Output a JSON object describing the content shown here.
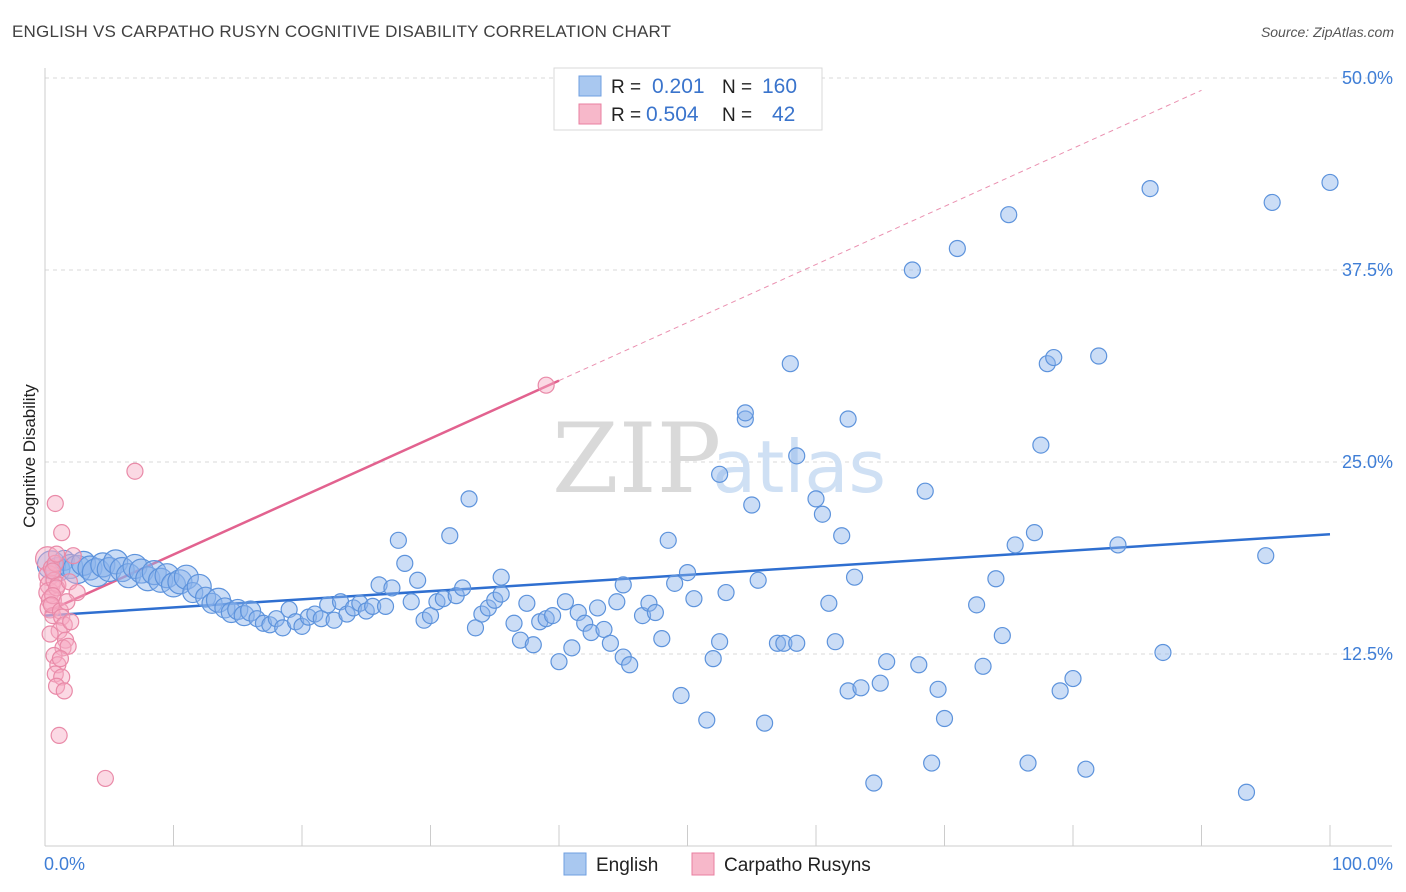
{
  "header": {
    "title": "ENGLISH VS CARPATHO RUSYN COGNITIVE DISABILITY CORRELATION CHART",
    "source": "Source: ZipAtlas.com"
  },
  "watermark": {
    "zip": "ZIP",
    "atlas": "atlas"
  },
  "legend_top": {
    "rows": [
      {
        "r_label": "R =",
        "r_value": "0.201",
        "n_label": "N =",
        "n_value": "160",
        "color": "#a9c8f0",
        "stroke": "#6f9fe0"
      },
      {
        "r_label": "R =",
        "r_value": "0.504",
        "n_label": "N =",
        "n_value": "42",
        "color": "#f7b8ca",
        "stroke": "#e87fa0"
      }
    ]
  },
  "legend_bottom": {
    "items": [
      {
        "label": "English",
        "color": "#a9c8f0",
        "stroke": "#6f9fe0"
      },
      {
        "label": "Carpatho Rusyns",
        "color": "#f7b8ca",
        "stroke": "#e87fa0"
      }
    ]
  },
  "colors": {
    "blue_fill": "rgba(140,180,235,0.45)",
    "blue_stroke": "#5d93dc",
    "blue_line": "#2f6fd0",
    "pink_fill": "rgba(247,170,195,0.45)",
    "pink_stroke": "#e98aa8",
    "pink_line": "#e2628f",
    "grid": "#d8d8d8"
  },
  "chart_data": {
    "type": "scatter",
    "title": "ENGLISH VS CARPATHO RUSYN COGNITIVE DISABILITY CORRELATION CHART",
    "xlabel": "",
    "ylabel": "Cognitive Disability",
    "xlim": [
      0,
      100
    ],
    "ylim": [
      0,
      50
    ],
    "x_tick_labels": [
      "0.0%",
      "100.0%"
    ],
    "y_ticks": [
      12.5,
      25.0,
      37.5,
      50.0
    ],
    "y_tick_labels": [
      "12.5%",
      "25.0%",
      "37.5%",
      "50.0%"
    ],
    "grid": true,
    "legend_position": "top-center",
    "series": [
      {
        "name": "English",
        "r": 0.201,
        "n": 160,
        "trend": {
          "x": [
            0,
            100
          ],
          "y": [
            15.0,
            20.3
          ]
        },
        "points": [
          [
            0.5,
            18.3,
            14
          ],
          [
            1.0,
            18.0,
            12
          ],
          [
            1.5,
            18.6,
            10
          ],
          [
            2.0,
            18.2,
            12
          ],
          [
            2.5,
            18.0,
            14
          ],
          [
            3.0,
            18.4,
            12
          ],
          [
            3.5,
            18.1,
            12
          ],
          [
            4.0,
            17.8,
            14
          ],
          [
            4.5,
            18.3,
            12
          ],
          [
            5.0,
            18.0,
            12
          ],
          [
            5.5,
            18.5,
            12
          ],
          [
            6.0,
            18.0,
            12
          ],
          [
            6.5,
            17.6,
            12
          ],
          [
            7.0,
            18.2,
            12
          ],
          [
            7.5,
            17.9,
            12
          ],
          [
            8.0,
            17.4,
            12
          ],
          [
            8.5,
            17.8,
            12
          ],
          [
            9.0,
            17.3,
            12
          ],
          [
            9.5,
            17.6,
            12
          ],
          [
            10.0,
            17.0,
            12
          ],
          [
            10.5,
            17.2,
            12
          ],
          [
            11.0,
            17.5,
            12
          ],
          [
            11.5,
            16.5,
            10
          ],
          [
            12.0,
            16.9,
            12
          ],
          [
            12.5,
            16.2,
            10
          ],
          [
            13.0,
            15.8,
            10
          ],
          [
            13.5,
            16.0,
            12
          ],
          [
            14.0,
            15.5,
            10
          ],
          [
            14.5,
            15.2,
            10
          ],
          [
            15.0,
            15.4,
            10
          ],
          [
            15.5,
            15.0,
            10
          ],
          [
            16.0,
            15.3,
            10
          ],
          [
            16.5,
            14.8,
            8
          ],
          [
            17.0,
            14.5,
            8
          ],
          [
            17.5,
            14.4,
            8
          ],
          [
            18.0,
            14.8,
            8
          ],
          [
            18.5,
            14.2,
            8
          ],
          [
            19.0,
            15.4,
            8
          ],
          [
            19.5,
            14.6,
            8
          ],
          [
            20.0,
            14.3,
            8
          ],
          [
            20.5,
            14.9,
            8
          ],
          [
            21.0,
            15.1,
            8
          ],
          [
            21.5,
            14.8,
            8
          ],
          [
            22.0,
            15.7,
            8
          ],
          [
            22.5,
            14.7,
            8
          ],
          [
            23.0,
            15.9,
            8
          ],
          [
            23.5,
            15.1,
            8
          ],
          [
            24.0,
            15.5,
            8
          ],
          [
            24.5,
            15.8,
            8
          ],
          [
            25.0,
            15.3,
            8
          ],
          [
            25.5,
            15.6,
            8
          ],
          [
            26.0,
            17.0,
            8
          ],
          [
            26.5,
            15.6,
            8
          ],
          [
            27.0,
            16.8,
            8
          ],
          [
            28.0,
            18.4,
            8
          ],
          [
            27.5,
            19.9,
            8
          ],
          [
            28.5,
            15.9,
            8
          ],
          [
            29.0,
            17.3,
            8
          ],
          [
            29.5,
            14.7,
            8
          ],
          [
            30.0,
            15.0,
            8
          ],
          [
            30.5,
            15.9,
            8
          ],
          [
            31.0,
            16.1,
            8
          ],
          [
            31.5,
            20.2,
            8
          ],
          [
            32.0,
            16.3,
            8
          ],
          [
            32.5,
            16.8,
            8
          ],
          [
            33.0,
            22.6,
            8
          ],
          [
            33.5,
            14.2,
            8
          ],
          [
            34.0,
            15.1,
            8
          ],
          [
            34.5,
            15.5,
            8
          ],
          [
            35.0,
            16.0,
            8
          ],
          [
            35.5,
            16.4,
            8
          ],
          [
            35.5,
            17.5,
            8
          ],
          [
            36.5,
            14.5,
            8
          ],
          [
            37.0,
            13.4,
            8
          ],
          [
            37.5,
            15.8,
            8
          ],
          [
            38.0,
            13.1,
            8
          ],
          [
            38.5,
            14.6,
            8
          ],
          [
            39.0,
            14.8,
            8
          ],
          [
            40.0,
            12.0,
            8
          ],
          [
            39.5,
            15.0,
            8
          ],
          [
            40.5,
            15.9,
            8
          ],
          [
            41.0,
            12.9,
            8
          ],
          [
            41.5,
            15.2,
            8
          ],
          [
            42.0,
            14.5,
            8
          ],
          [
            42.5,
            13.9,
            8
          ],
          [
            43.0,
            15.5,
            8
          ],
          [
            43.5,
            14.1,
            8
          ],
          [
            44.0,
            13.2,
            8
          ],
          [
            44.5,
            15.9,
            8
          ],
          [
            45.0,
            12.3,
            8
          ],
          [
            45.5,
            11.8,
            8
          ],
          [
            45.0,
            17.0,
            8
          ],
          [
            46.5,
            15.0,
            8
          ],
          [
            47.0,
            15.8,
            8
          ],
          [
            47.5,
            15.2,
            8
          ],
          [
            48.0,
            13.5,
            8
          ],
          [
            48.5,
            19.9,
            8
          ],
          [
            49.0,
            17.1,
            8
          ],
          [
            50.0,
            17.8,
            8
          ],
          [
            50.5,
            16.1,
            8
          ],
          [
            49.5,
            9.8,
            8
          ],
          [
            51.5,
            8.2,
            8
          ],
          [
            52.5,
            13.3,
            8
          ],
          [
            52.0,
            12.2,
            8
          ],
          [
            53.0,
            16.5,
            8
          ],
          [
            52.5,
            24.2,
            8
          ],
          [
            54.5,
            27.8,
            8
          ],
          [
            55.0,
            22.2,
            8
          ],
          [
            55.5,
            17.3,
            8
          ],
          [
            54.5,
            28.2,
            8
          ],
          [
            56.0,
            8.0,
            8
          ],
          [
            57.0,
            13.2,
            8
          ],
          [
            57.5,
            13.2,
            8
          ],
          [
            58.5,
            13.2,
            8
          ],
          [
            58.0,
            31.4,
            8
          ],
          [
            58.5,
            25.4,
            8
          ],
          [
            60.0,
            22.6,
            8
          ],
          [
            60.5,
            21.6,
            8
          ],
          [
            61.0,
            15.8,
            8
          ],
          [
            61.5,
            13.3,
            8
          ],
          [
            62.0,
            20.2,
            8
          ],
          [
            62.5,
            27.8,
            8
          ],
          [
            63.0,
            17.5,
            8
          ],
          [
            62.5,
            10.1,
            8
          ],
          [
            63.5,
            10.3,
            8
          ],
          [
            64.5,
            4.1,
            8
          ],
          [
            65.0,
            10.6,
            8
          ],
          [
            65.5,
            12.0,
            8
          ],
          [
            67.5,
            37.5,
            8
          ],
          [
            68.0,
            11.8,
            8
          ],
          [
            68.5,
            23.1,
            8
          ],
          [
            69.5,
            10.2,
            8
          ],
          [
            70.0,
            8.3,
            8
          ],
          [
            69.0,
            5.4,
            8
          ],
          [
            71.0,
            38.9,
            8
          ],
          [
            72.5,
            15.7,
            8
          ],
          [
            73.0,
            11.7,
            8
          ],
          [
            74.0,
            17.4,
            8
          ],
          [
            74.5,
            13.7,
            8
          ],
          [
            75.0,
            41.1,
            8
          ],
          [
            75.5,
            19.6,
            8
          ],
          [
            76.5,
            5.4,
            8
          ],
          [
            77.0,
            20.4,
            8
          ],
          [
            77.5,
            26.1,
            8
          ],
          [
            78.0,
            31.4,
            8
          ],
          [
            78.5,
            31.8,
            8
          ],
          [
            79.0,
            10.1,
            8
          ],
          [
            80.0,
            10.9,
            8
          ],
          [
            81.0,
            5.0,
            8
          ],
          [
            82.0,
            31.9,
            8
          ],
          [
            83.5,
            19.6,
            8
          ],
          [
            86.0,
            42.8,
            8
          ],
          [
            87.0,
            12.6,
            8
          ],
          [
            93.5,
            3.5,
            8
          ],
          [
            95.0,
            18.9,
            8
          ],
          [
            95.5,
            41.9,
            8
          ],
          [
            100.0,
            43.2,
            8
          ]
        ]
      },
      {
        "name": "Carpatho Rusyns",
        "r": 0.504,
        "n": 42,
        "trend": {
          "x": [
            0,
            40
          ],
          "y": [
            15.2,
            30.3
          ]
        },
        "trend_extension": {
          "x": [
            40,
            90
          ],
          "y": [
            30.3,
            49.2
          ]
        },
        "points": [
          [
            0.2,
            18.7,
            12
          ],
          [
            0.3,
            17.6,
            10
          ],
          [
            0.4,
            17.0,
            10
          ],
          [
            0.3,
            16.5,
            10
          ],
          [
            0.5,
            16.0,
            10
          ],
          [
            0.4,
            15.5,
            10
          ],
          [
            0.6,
            15.0,
            8
          ],
          [
            0.5,
            18.1,
            8
          ],
          [
            0.8,
            18.4,
            8
          ],
          [
            0.7,
            17.3,
            8
          ],
          [
            1.0,
            17.0,
            8
          ],
          [
            0.9,
            16.8,
            8
          ],
          [
            0.6,
            16.3,
            8
          ],
          [
            0.5,
            15.7,
            8
          ],
          [
            1.2,
            15.3,
            8
          ],
          [
            1.3,
            14.9,
            8
          ],
          [
            1.5,
            14.4,
            8
          ],
          [
            1.1,
            14.0,
            8
          ],
          [
            1.6,
            13.4,
            8
          ],
          [
            1.4,
            12.9,
            8
          ],
          [
            1.8,
            13.0,
            8
          ],
          [
            0.7,
            12.4,
            8
          ],
          [
            1.0,
            11.8,
            8
          ],
          [
            0.8,
            11.2,
            8
          ],
          [
            1.3,
            11.0,
            8
          ],
          [
            0.9,
            10.4,
            8
          ],
          [
            1.5,
            10.1,
            8
          ],
          [
            0.8,
            22.3,
            8
          ],
          [
            1.3,
            20.4,
            8
          ],
          [
            0.9,
            19.0,
            8
          ],
          [
            1.1,
            7.2,
            8
          ],
          [
            4.7,
            4.4,
            8
          ],
          [
            7.0,
            24.4,
            8
          ],
          [
            39.0,
            30.0,
            8
          ],
          [
            2.2,
            18.9,
            8
          ],
          [
            1.9,
            17.2,
            8
          ],
          [
            2.5,
            16.5,
            8
          ],
          [
            1.7,
            15.9,
            8
          ],
          [
            2.0,
            14.6,
            8
          ],
          [
            0.4,
            13.8,
            8
          ],
          [
            1.2,
            12.2,
            8
          ],
          [
            0.6,
            17.9,
            8
          ]
        ]
      }
    ]
  }
}
